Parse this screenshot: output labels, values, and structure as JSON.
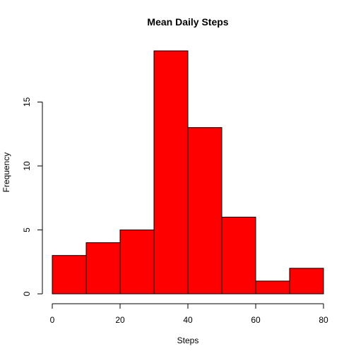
{
  "chart_data": {
    "type": "bar",
    "title": "Mean Daily Steps",
    "xlabel": "Steps",
    "ylabel": "Frequency",
    "bin_edges": [
      0,
      10,
      20,
      30,
      40,
      50,
      60,
      70,
      80
    ],
    "values": [
      3,
      4,
      5,
      19,
      13,
      6,
      1,
      2
    ],
    "xlim": [
      0,
      80
    ],
    "ylim": [
      0,
      19
    ],
    "x_ticks": [
      0,
      20,
      40,
      60,
      80
    ],
    "y_ticks": [
      0,
      5,
      10,
      15
    ],
    "bar_color": "#ff0000",
    "grid": false
  }
}
